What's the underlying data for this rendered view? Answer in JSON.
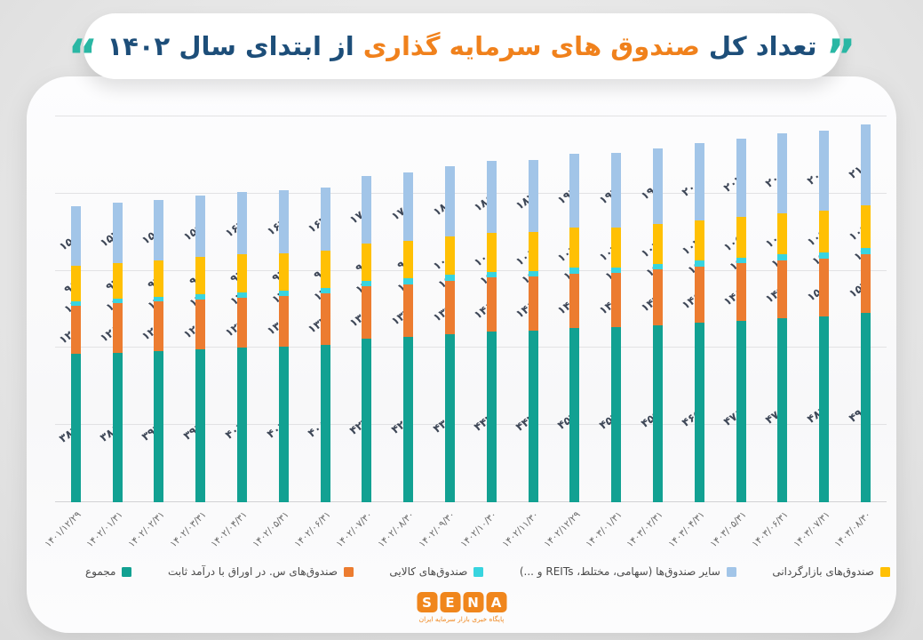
{
  "title": {
    "quote_right": "”",
    "part1_navy": "تعداد کل",
    "part2_orange": "صندوق های سرمایه گذاری",
    "part3_navy": "از ابتدای سال ۱۴۰۲",
    "quote_left": "“",
    "navy_color": "#1d4e79",
    "orange_color": "#f0811c",
    "quote_color": "#2ab7a4"
  },
  "chart_data": {
    "type": "bar",
    "stacked": true,
    "grid": true,
    "ylim": [
      0,
      1000
    ],
    "legend_position": "bottom",
    "value_label_digits": "persian",
    "categories": [
      "۱۴۰۱/۱۲/۲۹",
      "۱۴۰۲/۰۱/۳۱",
      "۱۴۰۲/۰۲/۳۱",
      "۱۴۰۲/۰۳/۳۱",
      "۱۴۰۲/۰۴/۳۱",
      "۱۴۰۲/۰۵/۳۱",
      "۱۴۰۲/۰۶/۳۱",
      "۱۴۰۲/۰۷/۳۰",
      "۱۴۰۲/۰۸/۳۰",
      "۱۴۰۲/۰۹/۳۰",
      "۱۴۰۲/۱۰/۳۰",
      "۱۴۰۲/۱۱/۳۰",
      "۱۴۰۲/۱۲/۲۹",
      "۱۴۰۳/۰۱/۳۱",
      "۱۴۰۳/۰۲/۳۱",
      "۱۴۰۳/۰۴/۳۱",
      "۱۴۰۳/۰۵/۳۱",
      "۱۴۰۳/۰۶/۳۱",
      "۱۴۰۳/۰۷/۳۱",
      "۱۴۰۳/۰۸/۳۰"
    ],
    "series": [
      {
        "key": "total",
        "name": "مجموع",
        "color": "#12a192",
        "values": [
          384,
          388,
          392,
          397,
          402,
          404,
          408,
          423,
          428,
          435,
          442,
          444,
          452,
          453,
          459,
          465,
          471,
          478,
          482,
          490
        ]
      },
      {
        "key": "fixed_income",
        "name": "صندوق‌های س. در اوراق با درآمد ثابت",
        "color": "#ec7c30",
        "values": [
          126,
          128,
          128,
          128,
          129,
          131,
          133,
          136,
          137,
          139,
          141,
          141,
          141,
          141,
          144,
          146,
          148,
          149,
          150,
          154
        ]
      },
      {
        "key": "commodity",
        "name": "صندوق‌های کالایی",
        "color": "#38d4df",
        "values": [
          11,
          11,
          13,
          14,
          14,
          14,
          14,
          14,
          15,
          15,
          15,
          15,
          15,
          15,
          15,
          15,
          15,
          15,
          15,
          16
        ]
      },
      {
        "key": "market_making",
        "name": "صندوق‌های بازارگردانی",
        "color": "#ffc004",
        "values": [
          91,
          92,
          93,
          96,
          97,
          97,
          98,
          98,
          98,
          100,
          100,
          101,
          104,
          104,
          104,
          104,
          105,
          108,
          109,
          109
        ]
      },
      {
        "key": "other_funds",
        "name": "سایر صندوق‌ها (سهامی، مختلط، REITs و ...)",
        "color": "#a2c5e8",
        "values": [
          156,
          157,
          158,
          159,
          162,
          162,
          163,
          175,
          178,
          181,
          186,
          187,
          192,
          193,
          196,
          200,
          203,
          206,
          208,
          211
        ]
      }
    ]
  },
  "legend": {
    "order": [
      "total",
      "fixed_income",
      "commodity",
      "other_funds",
      "market_making"
    ]
  },
  "logo": {
    "letters": [
      "S",
      "E",
      "N",
      "A"
    ],
    "subtitle": "پایگاه خبری بازار سرمایه ایران",
    "color": "#f0861c"
  }
}
